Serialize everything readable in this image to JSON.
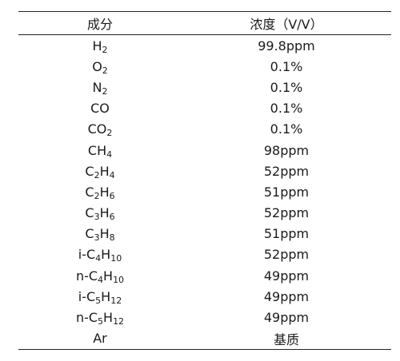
{
  "table": {
    "headers": [
      "成分",
      "浓度（V/V）"
    ],
    "rows": [
      {
        "component": [
          [
            "H",
            ""
          ],
          [
            "2",
            "sub"
          ]
        ],
        "concentration": "99.8ppm"
      },
      {
        "component": [
          [
            "O",
            ""
          ],
          [
            "2",
            "sub"
          ]
        ],
        "concentration": "0.1%"
      },
      {
        "component": [
          [
            "N",
            ""
          ],
          [
            "2",
            "sub"
          ]
        ],
        "concentration": "0.1%"
      },
      {
        "component": [
          [
            "CO",
            ""
          ]
        ],
        "concentration": "0.1%"
      },
      {
        "component": [
          [
            "CO",
            ""
          ],
          [
            "2",
            "sub"
          ]
        ],
        "concentration": "0.1%"
      },
      {
        "component": [
          [
            "CH",
            ""
          ],
          [
            "4",
            "sub"
          ]
        ],
        "concentration": "98ppm"
      },
      {
        "component": [
          [
            "C",
            ""
          ],
          [
            "2",
            "sub"
          ],
          [
            "H",
            ""
          ],
          [
            "4",
            "sub"
          ]
        ],
        "concentration": "52ppm"
      },
      {
        "component": [
          [
            "C",
            ""
          ],
          [
            "2",
            "sub"
          ],
          [
            "H",
            ""
          ],
          [
            "6",
            "sub"
          ]
        ],
        "concentration": "51ppm"
      },
      {
        "component": [
          [
            "C",
            ""
          ],
          [
            "3",
            "sub"
          ],
          [
            "H",
            ""
          ],
          [
            "6",
            "sub"
          ]
        ],
        "concentration": "52ppm"
      },
      {
        "component": [
          [
            "C",
            ""
          ],
          [
            "3",
            "sub"
          ],
          [
            "H",
            ""
          ],
          [
            "8",
            "sub"
          ]
        ],
        "concentration": "51ppm"
      },
      {
        "component": [
          [
            "i-C",
            ""
          ],
          [
            "4",
            "sub"
          ],
          [
            "H",
            ""
          ],
          [
            "10",
            "sub"
          ]
        ],
        "concentration": "52ppm"
      },
      {
        "component": [
          [
            "n-C",
            ""
          ],
          [
            "4",
            "sub"
          ],
          [
            "H",
            ""
          ],
          [
            "10",
            "sub"
          ]
        ],
        "concentration": "49ppm"
      },
      {
        "component": [
          [
            "i-C",
            ""
          ],
          [
            "5",
            "sub"
          ],
          [
            "H",
            ""
          ],
          [
            "12",
            "sub"
          ]
        ],
        "concentration": "49ppm"
      },
      {
        "component": [
          [
            "n-C",
            ""
          ],
          [
            "5",
            "sub"
          ],
          [
            "H",
            ""
          ],
          [
            "12",
            "sub"
          ]
        ],
        "concentration": "49ppm"
      },
      {
        "component": [
          [
            "Ar",
            ""
          ]
        ],
        "concentration": "基质"
      }
    ]
  }
}
